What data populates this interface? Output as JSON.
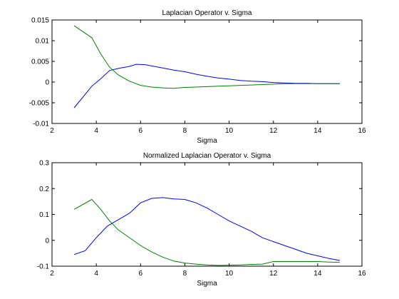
{
  "chart_data": [
    {
      "type": "line",
      "title": "Laplacian Operator v. Sigma",
      "xlabel": "Sigma",
      "ylabel": "",
      "xlim": [
        2,
        16
      ],
      "ylim": [
        -0.01,
        0.015
      ],
      "xticks": [
        "2",
        "4",
        "6",
        "8",
        "10",
        "12",
        "14",
        "16"
      ],
      "yticks": [
        "-0.01",
        "-0.005",
        "0",
        "0.005",
        "0.01",
        "0.015"
      ],
      "grid": false,
      "series": [
        {
          "color": "#0000ff",
          "x": [
            3.0,
            3.8,
            4.2,
            4.6,
            5.0,
            5.5,
            5.8,
            6.2,
            6.5,
            7.0,
            7.5,
            8.0,
            8.5,
            9.0,
            9.5,
            10.0,
            10.5,
            11.0,
            11.5,
            12.0,
            12.5,
            13.0,
            13.5,
            14.0,
            14.5,
            15.0
          ],
          "y": [
            -0.0062,
            -0.001,
            0.0008,
            0.0028,
            0.0033,
            0.0038,
            0.0043,
            0.0042,
            0.0039,
            0.0034,
            0.0029,
            0.0025,
            0.0019,
            0.0014,
            0.001,
            0.0007,
            0.0004,
            0.0002,
            0.0001,
            -0.0001,
            -0.0002,
            -0.0003,
            -0.0003,
            -0.0004,
            -0.0004,
            -0.0004
          ]
        },
        {
          "color": "#008000",
          "x": [
            3.0,
            3.8,
            4.2,
            4.6,
            5.0,
            5.5,
            6.0,
            6.5,
            7.0,
            7.5,
            8.0,
            8.5,
            9.0,
            9.5,
            10.0,
            10.5,
            11.0,
            11.5,
            12.0,
            12.5,
            13.0,
            13.5,
            14.0,
            14.5,
            15.0
          ],
          "y": [
            0.0136,
            0.0107,
            0.0068,
            0.0036,
            0.0017,
            0.0002,
            -0.0008,
            -0.0012,
            -0.0014,
            -0.0015,
            -0.0013,
            -0.0012,
            -0.0011,
            -0.001,
            -0.0009,
            -0.0008,
            -0.0007,
            -0.0006,
            -0.0005,
            -0.0004,
            -0.0004,
            -0.0004,
            -0.0004,
            -0.0004,
            -0.0004
          ]
        }
      ]
    },
    {
      "type": "line",
      "title": "Normalized Laplacian Operator v. Sigma",
      "xlabel": "Sigma",
      "ylabel": "",
      "xlim": [
        2,
        16
      ],
      "ylim": [
        -0.1,
        0.3
      ],
      "xticks": [
        "2",
        "4",
        "6",
        "8",
        "10",
        "12",
        "14",
        "16"
      ],
      "yticks": [
        "-0.1",
        "0",
        "0.1",
        "0.2",
        "0.3"
      ],
      "grid": false,
      "series": [
        {
          "color": "#0000ff",
          "x": [
            3.0,
            3.5,
            4.0,
            4.5,
            5.0,
            5.5,
            6.0,
            6.5,
            7.0,
            7.5,
            8.0,
            8.5,
            9.0,
            9.5,
            10.0,
            10.5,
            11.0,
            11.5,
            12.0,
            12.5,
            13.0,
            13.5,
            14.0,
            14.5,
            15.0
          ],
          "y": [
            -0.055,
            -0.04,
            0.01,
            0.055,
            0.08,
            0.105,
            0.145,
            0.162,
            0.165,
            0.16,
            0.158,
            0.145,
            0.125,
            0.1,
            0.075,
            0.055,
            0.035,
            0.01,
            -0.005,
            -0.02,
            -0.035,
            -0.05,
            -0.06,
            -0.07,
            -0.078
          ]
        },
        {
          "color": "#008000",
          "x": [
            3.0,
            3.8,
            4.2,
            4.6,
            5.0,
            5.5,
            6.0,
            6.5,
            7.0,
            7.5,
            8.0,
            8.5,
            9.0,
            9.5,
            10.0,
            10.5,
            11.0,
            11.5,
            12.0,
            12.5,
            13.0,
            13.5,
            14.0,
            14.5,
            15.0
          ],
          "y": [
            0.12,
            0.158,
            0.12,
            0.075,
            0.04,
            0.01,
            -0.02,
            -0.045,
            -0.065,
            -0.08,
            -0.088,
            -0.092,
            -0.095,
            -0.097,
            -0.096,
            -0.095,
            -0.093,
            -0.092,
            -0.082,
            -0.082,
            -0.082,
            -0.082,
            -0.082,
            -0.084,
            -0.085
          ]
        }
      ]
    }
  ]
}
